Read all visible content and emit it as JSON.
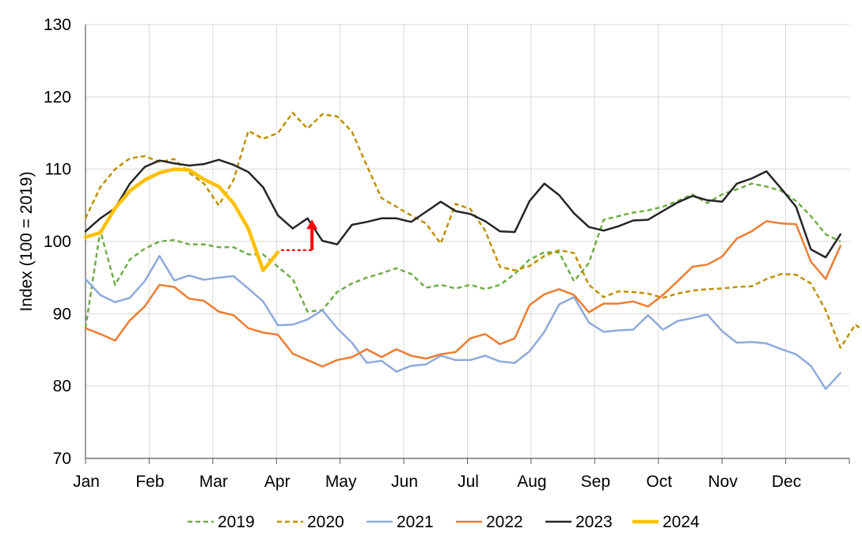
{
  "chart_data": {
    "type": "line",
    "title": "",
    "xlabel": "",
    "ylabel": "Index (100 = 2019)",
    "ylim": [
      70,
      130
    ],
    "yticks": [
      "70",
      "80",
      "90",
      "100",
      "110",
      "120",
      "130"
    ],
    "x_tick_labels": [
      "Jan",
      "Feb",
      "Mar",
      "Apr",
      "May",
      "Jun",
      "Jul",
      "Aug",
      "Sep",
      "Oct",
      "Nov",
      "Dec"
    ],
    "x_unit": "week",
    "x_range": [
      0,
      51.6
    ],
    "grid": true,
    "legend_position": "bottom",
    "series": [
      {
        "name": "2019",
        "color": "#70AD47",
        "dash": "6,4",
        "width": 2.5,
        "values": [
          88,
          101.5,
          94,
          97.5,
          99,
          100,
          100.2,
          99.6,
          99.6,
          99.2,
          99.2,
          98.2,
          98.2,
          96.5,
          94.8,
          90.3,
          90.5,
          93,
          94.2,
          95,
          95.6,
          96.3,
          95.5,
          93.6,
          94,
          93.5,
          94,
          93.4,
          94,
          95.5,
          97.5,
          98.5,
          98.5,
          94.5,
          97,
          103,
          103.5,
          104,
          104.3,
          104.8,
          105.6,
          106.5,
          105.3,
          106.5,
          107.2,
          108,
          107.6,
          107,
          105.6,
          103.5,
          101,
          100
        ]
      },
      {
        "name": "2020",
        "color": "#BF9000",
        "dash": "6,4",
        "width": 2.5,
        "values": [
          103.2,
          107.5,
          110,
          111.5,
          111.8,
          111,
          111.4,
          109.5,
          108,
          105,
          108.5,
          115.3,
          114.2,
          115,
          117.8,
          115.6,
          117.6,
          117.3,
          115.2,
          110.5,
          106,
          104.8,
          103.6,
          102.5,
          99.7,
          105.2,
          104.5,
          101.5,
          96.5,
          96,
          96.6,
          98,
          98.8,
          98.4,
          94,
          92.3,
          93.1,
          93,
          92.8,
          92.2,
          92.8,
          93.2,
          93.4,
          93.5,
          93.7,
          93.8,
          94.8,
          95.5,
          95.4,
          94.2,
          90.5,
          85.3,
          88.5,
          87
        ]
      },
      {
        "name": "2021",
        "color": "#8FAADC",
        "dash": "",
        "width": 2.5,
        "values": [
          94.8,
          92.6,
          91.6,
          92.2,
          94.5,
          98,
          94.6,
          95.3,
          94.7,
          95,
          95.2,
          93.5,
          91.7,
          88.4,
          88.5,
          89.2,
          90.5,
          88,
          86,
          83.2,
          83.5,
          82,
          82.8,
          83,
          84.2,
          83.6,
          83.6,
          84.2,
          83.4,
          83.2,
          84.8,
          87.5,
          91.3,
          92.3,
          88.8,
          87.5,
          87.7,
          87.8,
          89.8,
          87.8,
          89,
          89.4,
          89.9,
          87.6,
          86,
          86.1,
          85.9,
          85.1,
          84.4,
          82.8,
          79.6,
          81.8
        ]
      },
      {
        "name": "2022",
        "color": "#ED7D31",
        "dash": "",
        "width": 2.5,
        "values": [
          88,
          87.2,
          86.3,
          89.1,
          91,
          94,
          93.7,
          92.1,
          91.8,
          90.3,
          89.8,
          88,
          87.4,
          87.1,
          84.5,
          83.6,
          82.7,
          83.6,
          84,
          85.1,
          84,
          85.1,
          84.2,
          83.8,
          84.4,
          84.7,
          86.6,
          87.2,
          85.8,
          86.6,
          91.2,
          92.7,
          93.4,
          92.6,
          90.2,
          91.4,
          91.4,
          91.7,
          91,
          92.6,
          94.5,
          96.5,
          96.8,
          97.9,
          100.4,
          101.4,
          102.8,
          102.5,
          102.4,
          97.2,
          94.8,
          99.4
        ]
      },
      {
        "name": "2023",
        "color": "#262626",
        "dash": "",
        "width": 2.5,
        "values": [
          101.4,
          103.2,
          104.6,
          108,
          110.3,
          111.2,
          110.8,
          110.5,
          110.7,
          111.3,
          110.6,
          109.6,
          107.5,
          103.6,
          101.8,
          103.2,
          100.1,
          99.6,
          102.3,
          102.7,
          103.2,
          103.2,
          102.7,
          104.1,
          105.5,
          104.2,
          103.8,
          102.8,
          101.4,
          101.3,
          105.6,
          108,
          106.4,
          103.9,
          102,
          101.5,
          102.1,
          102.9,
          103,
          104.2,
          105.4,
          106.3,
          105.7,
          105.5,
          108,
          108.7,
          109.7,
          107.3,
          104.8,
          98.9,
          97.8,
          101
        ]
      },
      {
        "name": "2024",
        "color": "#FFC000",
        "dash": "",
        "width": 4.5,
        "values": [
          100.6,
          101.2,
          104.6,
          107,
          108.5,
          109.5,
          110,
          109.9,
          108.6,
          107.6,
          105.3,
          101.8,
          96,
          98.5
        ]
      }
    ],
    "annotations": [
      {
        "type": "dashed-connector",
        "color": "#FF0000",
        "from_week": 13.2,
        "to_week": 15.3,
        "value": 98.8
      },
      {
        "type": "up-arrow",
        "color": "#FF0000",
        "at_week": 15.3,
        "from_value": 98.8,
        "to_value": 102.8
      }
    ]
  }
}
